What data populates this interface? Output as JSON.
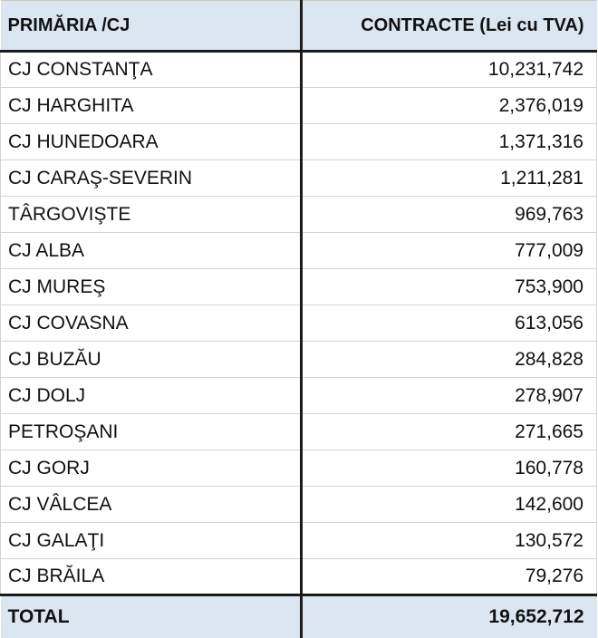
{
  "table": {
    "headers": {
      "name": "PRIMĂRIA /CJ",
      "value": "CONTRACTE (Lei cu TVA)"
    },
    "rows": [
      {
        "name": "CJ CONSTANŢA",
        "value": "10,231,742"
      },
      {
        "name": "CJ HARGHITA",
        "value": "2,376,019"
      },
      {
        "name": "CJ HUNEDOARA",
        "value": "1,371,316"
      },
      {
        "name": "CJ CARAŞ-SEVERIN",
        "value": "1,211,281"
      },
      {
        "name": "TÂRGOVIŞTE",
        "value": "969,763"
      },
      {
        "name": "CJ ALBA",
        "value": "777,009"
      },
      {
        "name": "CJ MUREŞ",
        "value": "753,900"
      },
      {
        "name": "CJ COVASNA",
        "value": "613,056"
      },
      {
        "name": "CJ BUZĂU",
        "value": "284,828"
      },
      {
        "name": "CJ DOLJ",
        "value": "278,907"
      },
      {
        "name": "PETROŞANI",
        "value": "271,665"
      },
      {
        "name": "CJ GORJ",
        "value": "160,778"
      },
      {
        "name": "CJ VÂLCEA",
        "value": "142,600"
      },
      {
        "name": "CJ GALAŢI",
        "value": "130,572"
      },
      {
        "name": "CJ BRĂILA",
        "value": "79,276"
      }
    ],
    "total": {
      "label": "TOTAL",
      "value": "19,652,712"
    }
  }
}
